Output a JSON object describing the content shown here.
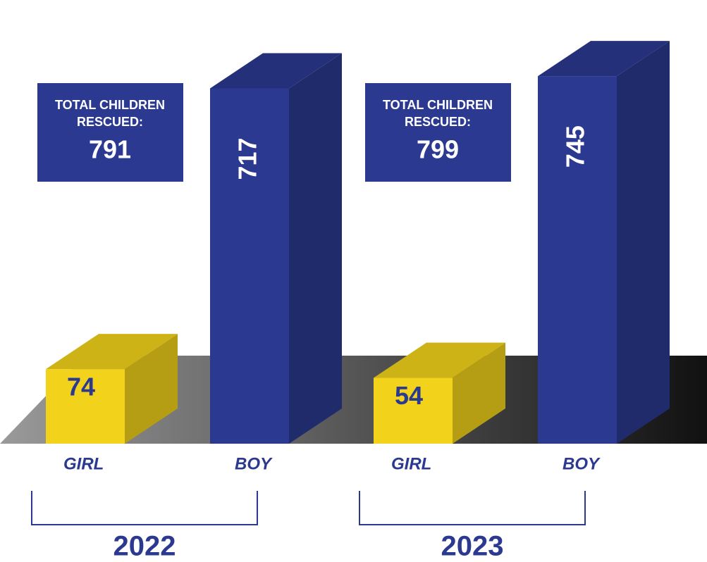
{
  "chart_data": {
    "type": "bar",
    "groups": [
      {
        "label": "2022",
        "total_label": "TOTAL CHILDREN RESCUED:",
        "total": 791,
        "categories": [
          "GIRL",
          "BOY"
        ],
        "values": [
          74,
          717
        ]
      },
      {
        "label": "2023",
        "total_label": "TOTAL CHILDREN RESCUED:",
        "total": 799,
        "categories": [
          "GIRL",
          "BOY"
        ],
        "values": [
          54,
          745
        ]
      }
    ],
    "colors": [
      "#f2d21a",
      "#2b3990"
    ]
  }
}
